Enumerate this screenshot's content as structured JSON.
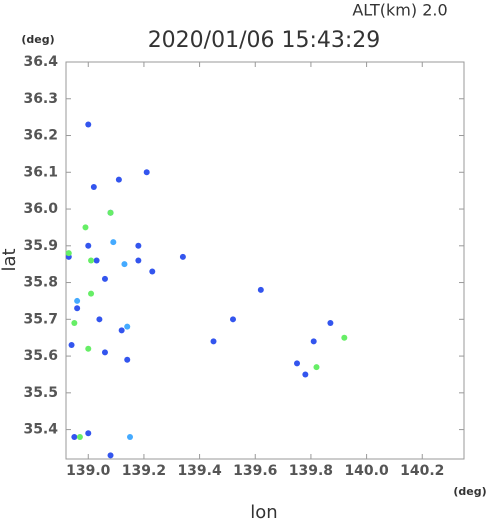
{
  "chart_data": {
    "type": "scatter",
    "title": "2020/01/06 15:43:29",
    "subtitle": "ALT(km) 2.0",
    "x_label": "lon",
    "y_label": "lat",
    "x_unit": "(deg)",
    "y_unit": "(deg)",
    "xlim": [
      138.92,
      140.35
    ],
    "ylim": [
      35.32,
      36.4
    ],
    "xticks": [
      {
        "value": 139.0,
        "label": "139.0"
      },
      139.2,
      139.4,
      139.6,
      139.8,
      {
        "value": 140.0,
        "label": "140.0"
      },
      140.2
    ],
    "yticks": [
      35.4,
      35.5,
      35.6,
      35.7,
      35.8,
      35.9,
      {
        "value": 36.0,
        "label": "36.0"
      },
      36.1,
      36.2,
      36.3,
      36.4
    ],
    "series": [
      {
        "color": "#3355ee",
        "x": [
          139.0,
          139.02,
          139.08,
          139.21,
          139.11,
          139.0,
          139.03,
          138.93,
          139.06,
          138.96,
          139.04,
          138.94,
          139.12,
          139.14,
          139.06,
          139.0,
          138.95,
          139.08,
          139.62,
          139.45,
          139.52,
          139.81,
          139.75,
          139.78,
          139.87,
          139.23,
          139.18,
          139.18,
          139.34
        ],
        "y": [
          36.23,
          36.06,
          35.99,
          36.1,
          36.08,
          35.9,
          35.86,
          35.87,
          35.81,
          35.73,
          35.7,
          35.63,
          35.67,
          35.59,
          35.61,
          35.39,
          35.38,
          35.33,
          35.78,
          35.64,
          35.7,
          35.64,
          35.58,
          35.55,
          35.69,
          35.83,
          35.9,
          35.86,
          35.87
        ]
      },
      {
        "color": "#44aaff",
        "x": [
          139.15,
          139.13,
          139.09,
          139.14,
          138.96
        ],
        "y": [
          35.38,
          35.85,
          35.91,
          35.68,
          35.75
        ]
      },
      {
        "color": "#66ee66",
        "x": [
          138.99,
          139.01,
          138.93,
          139.01,
          138.95,
          139.0,
          138.97,
          139.82,
          139.08,
          139.92
        ],
        "y": [
          35.95,
          35.86,
          35.88,
          35.77,
          35.69,
          35.62,
          35.38,
          35.57,
          35.99,
          35.65
        ]
      }
    ]
  }
}
